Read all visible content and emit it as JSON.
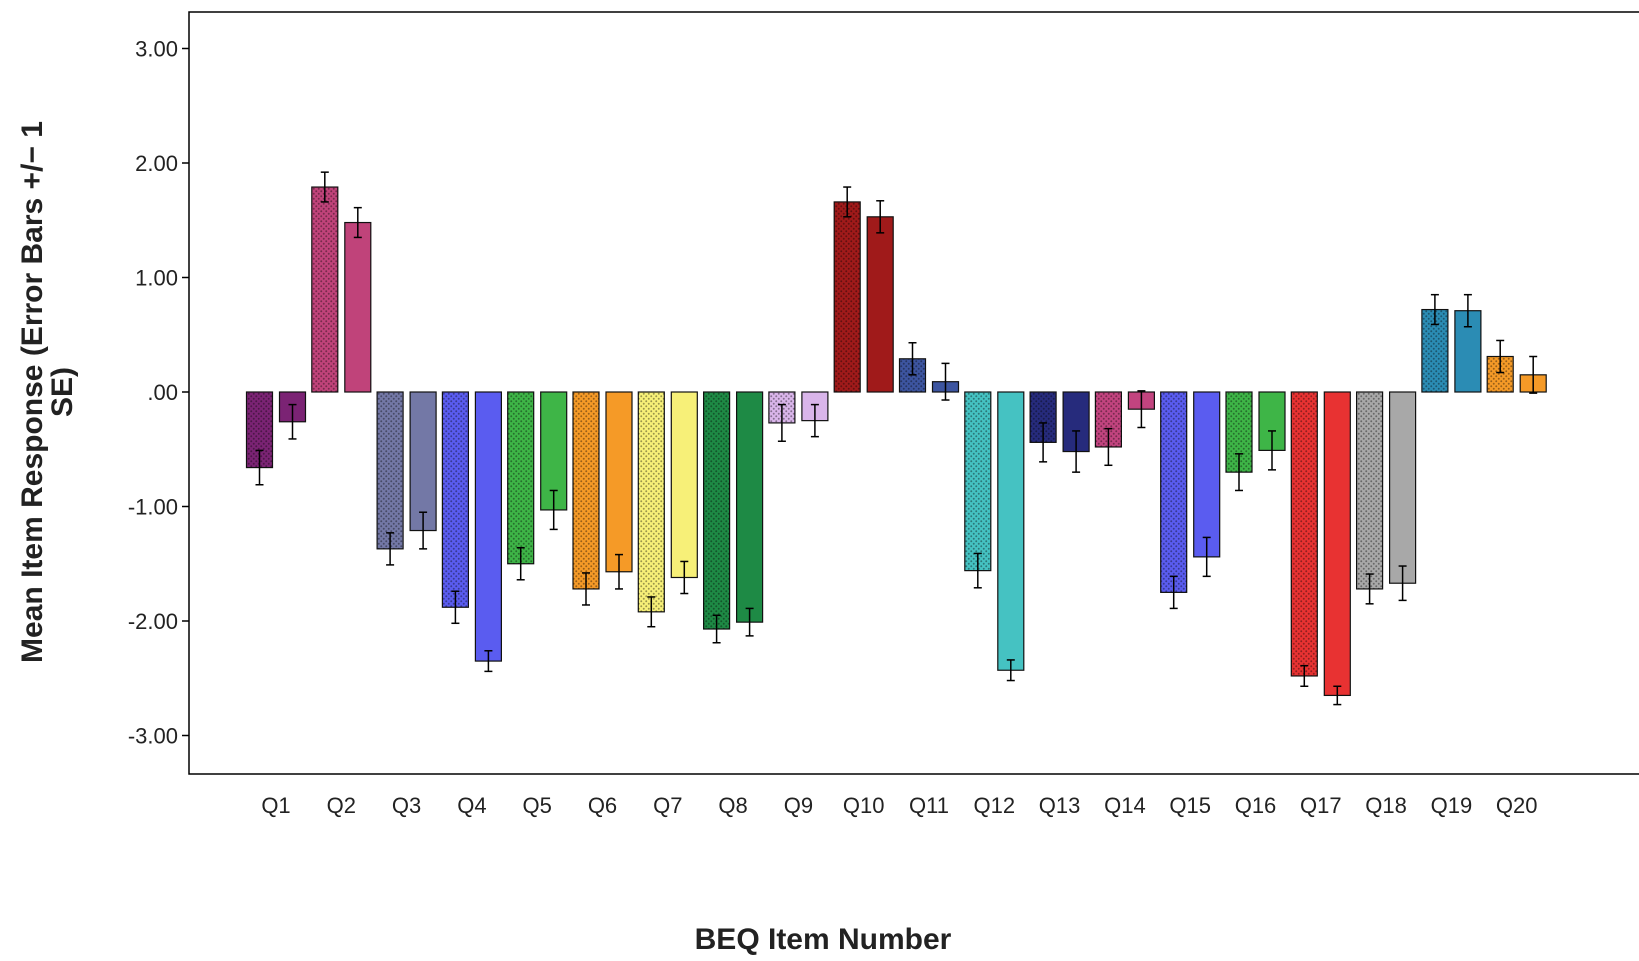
{
  "chart_data": {
    "type": "bar",
    "title": "",
    "xlabel": "BEQ Item Number",
    "ylabel_line1": "Mean Item Response (Error Bars +/− 1",
    "ylabel_line2": "SE)",
    "ylim": [
      -3.3,
      3.35
    ],
    "yticks": [
      3.0,
      2.0,
      1.0,
      0.0,
      -1.0,
      -2.0,
      -3.0
    ],
    "ytick_labels": [
      "3.00",
      "2.00",
      "1.00",
      ".00",
      "-1.00",
      "-2.00",
      "-3.00"
    ],
    "categories": [
      "Q1",
      "Q2",
      "Q3",
      "Q4",
      "Q5",
      "Q6",
      "Q7",
      "Q8",
      "Q9",
      "Q10",
      "Q11",
      "Q12",
      "Q13",
      "Q14",
      "Q15",
      "Q16",
      "Q17",
      "Q18",
      "Q19",
      "Q20"
    ],
    "series": [
      {
        "pattern": "dotted",
        "values": [
          -0.66,
          1.79,
          -1.37,
          -1.88,
          -1.5,
          -1.72,
          -1.92,
          -2.07,
          -0.27,
          1.66,
          0.29,
          -1.56,
          -0.44,
          -0.48,
          -1.75,
          -0.7,
          -2.48,
          -1.72,
          0.72,
          0.31
        ],
        "errors": [
          0.15,
          0.13,
          0.14,
          0.14,
          0.14,
          0.14,
          0.13,
          0.12,
          0.16,
          0.13,
          0.14,
          0.15,
          0.17,
          0.16,
          0.14,
          0.16,
          0.09,
          0.13,
          0.13,
          0.14
        ]
      },
      {
        "pattern": "solid",
        "values": [
          -0.26,
          1.48,
          -1.21,
          -2.35,
          -1.03,
          -1.57,
          -1.62,
          -2.01,
          -0.25,
          1.53,
          0.09,
          -2.43,
          -0.52,
          -0.15,
          -1.44,
          -0.51,
          -2.65,
          -1.67,
          0.71,
          0.15
        ],
        "errors": [
          0.15,
          0.13,
          0.16,
          0.09,
          0.17,
          0.15,
          0.14,
          0.12,
          0.14,
          0.14,
          0.16,
          0.09,
          0.18,
          0.16,
          0.17,
          0.17,
          0.08,
          0.15,
          0.14,
          0.16
        ]
      }
    ],
    "colors": [
      "#7b2374",
      "#c0437a",
      "#7378a6",
      "#5a5cf0",
      "#3eb547",
      "#f59a27",
      "#f7f078",
      "#1e8a45",
      "#d9b5ea",
      "#a01a1a",
      "#3d55a0",
      "#45c2c2",
      "#262b7c",
      "#c2447f",
      "#5a5cf0",
      "#3eb547",
      "#e83232",
      "#a8a8a8",
      "#2b8cb4",
      "#f59a27"
    ],
    "grid": false,
    "legend": "none"
  }
}
